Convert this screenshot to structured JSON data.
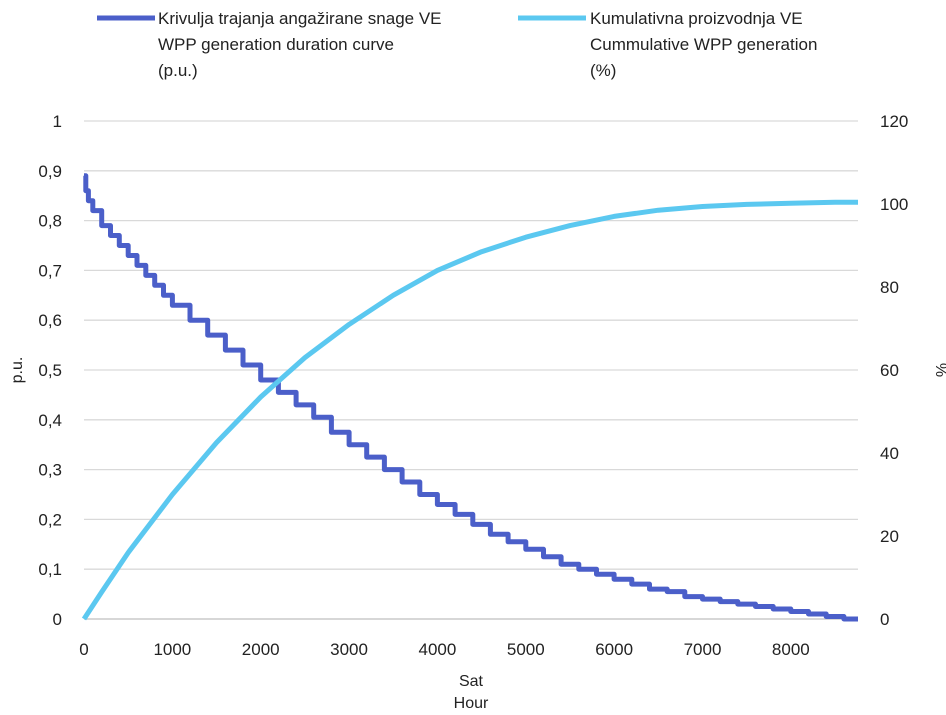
{
  "chart_data": {
    "type": "line",
    "title": "",
    "x_label_lines": [
      "Sat",
      "Hour"
    ],
    "y_left_label": "p.u.",
    "y_right_label": "%",
    "x_range": [
      0,
      8760
    ],
    "x_ticks": [
      0,
      1000,
      2000,
      3000,
      4000,
      5000,
      6000,
      7000,
      8000
    ],
    "y_left_range": [
      0,
      1
    ],
    "y_left_ticks": [
      "0",
      "0,1",
      "0,2",
      "0,3",
      "0,4",
      "0,5",
      "0,6",
      "0,7",
      "0,8",
      "0,9",
      "1"
    ],
    "y_right_range": [
      0,
      120
    ],
    "y_right_ticks": [
      "0",
      "20",
      "40",
      "60",
      "80",
      "100",
      "120"
    ],
    "grid": "horizontal",
    "legend_position": "top",
    "series": [
      {
        "name_lines": [
          "Krivulja trajanja angažirane snage VE",
          "WPP generation duration curve",
          "(p.u.)"
        ],
        "axis": "left",
        "color": "#4b5fc9",
        "step": true,
        "x": [
          0,
          20,
          50,
          100,
          200,
          300,
          400,
          500,
          600,
          700,
          800,
          900,
          1000,
          1200,
          1400,
          1600,
          1800,
          2000,
          2200,
          2400,
          2600,
          2800,
          3000,
          3200,
          3400,
          3600,
          3800,
          4000,
          4200,
          4400,
          4600,
          4800,
          5000,
          5200,
          5400,
          5600,
          5800,
          6000,
          6200,
          6400,
          6600,
          6800,
          7000,
          7200,
          7400,
          7600,
          7800,
          8000,
          8200,
          8400,
          8600,
          8760
        ],
        "y": [
          0.89,
          0.86,
          0.84,
          0.82,
          0.79,
          0.77,
          0.75,
          0.73,
          0.71,
          0.69,
          0.67,
          0.65,
          0.63,
          0.6,
          0.57,
          0.54,
          0.51,
          0.48,
          0.455,
          0.43,
          0.405,
          0.375,
          0.35,
          0.325,
          0.3,
          0.275,
          0.25,
          0.23,
          0.21,
          0.19,
          0.17,
          0.155,
          0.14,
          0.125,
          0.11,
          0.1,
          0.09,
          0.08,
          0.07,
          0.06,
          0.055,
          0.045,
          0.04,
          0.035,
          0.03,
          0.025,
          0.02,
          0.015,
          0.01,
          0.005,
          0.0,
          0.0
        ]
      },
      {
        "name_lines": [
          "Kumulativna proizvodnja VE",
          "Cummulative WPP generation",
          "(%)"
        ],
        "axis": "right",
        "color": "#5bc8f0",
        "step": false,
        "x": [
          0,
          200,
          500,
          1000,
          1500,
          2000,
          2500,
          3000,
          3500,
          4000,
          4500,
          5000,
          5500,
          6000,
          6500,
          7000,
          7500,
          8000,
          8500,
          8760
        ],
        "y": [
          0,
          6.5,
          16,
          30,
          42.5,
          53.5,
          63,
          71,
          78,
          84,
          88.5,
          92,
          94.8,
          97,
          98.5,
          99.4,
          99.9,
          100.2,
          100.4,
          100.4
        ]
      }
    ]
  }
}
